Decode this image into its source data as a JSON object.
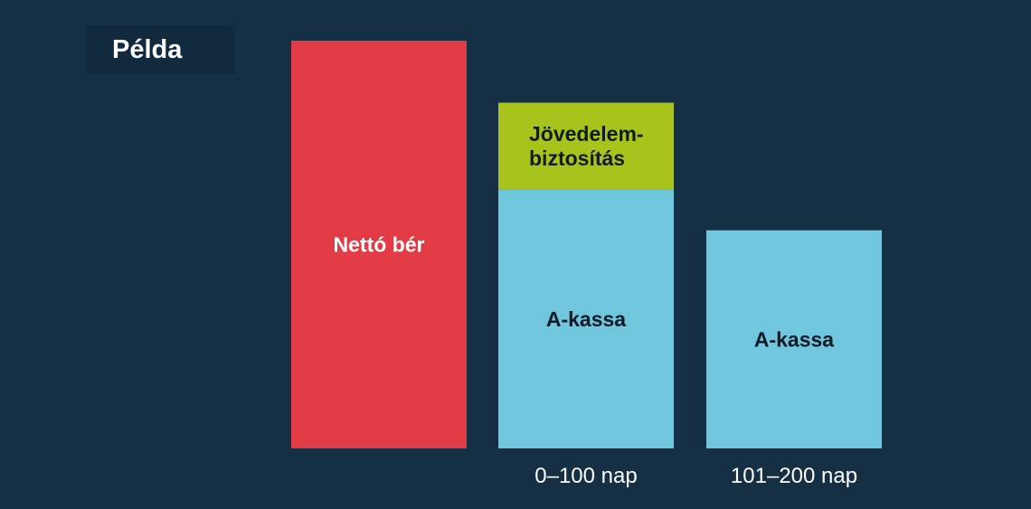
{
  "title": "Példa",
  "chart_data": {
    "type": "bar",
    "stacked": true,
    "ylim": [
      0,
      100
    ],
    "colors": {
      "background": "#152f44",
      "netto": "#e23b45",
      "jovedelem": "#a8c31c",
      "akassa": "#70c6dc"
    },
    "bars": [
      {
        "category": "",
        "segments": [
          {
            "label": "Nettó bér",
            "value": 100,
            "color": "#e23b45",
            "text_color": "#ffffff"
          }
        ]
      },
      {
        "category": "0–100 nap",
        "segments": [
          {
            "label": "A-kassa",
            "value": 63.5,
            "color": "#70c6dc",
            "text_color": "#0f1b26"
          },
          {
            "label": "Jövedelem-\nbiztosítás",
            "value": 21.3,
            "color": "#a8c31c",
            "text_color": "#0f1b26"
          }
        ]
      },
      {
        "category": "101–200 nap",
        "segments": [
          {
            "label": "A-kassa",
            "value": 53.5,
            "color": "#70c6dc",
            "text_color": "#0f1b26"
          }
        ]
      }
    ]
  }
}
